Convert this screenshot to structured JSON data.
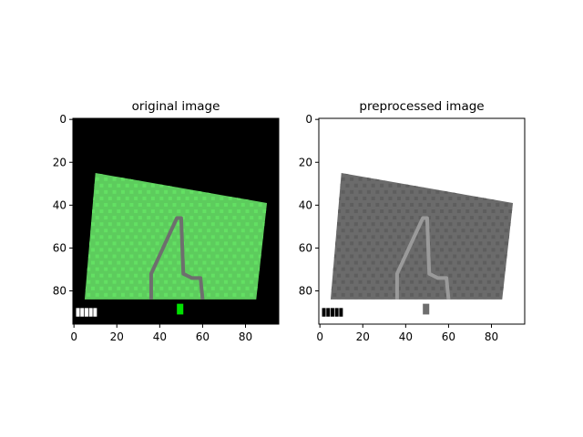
{
  "figure": {
    "background": "#ffffff"
  },
  "chart_data": [
    {
      "type": "image",
      "title": "original image",
      "xticks": [
        "0",
        "20",
        "40",
        "60",
        "80"
      ],
      "yticks": [
        "0",
        "20",
        "40",
        "60",
        "80"
      ],
      "xlim": [
        -0.5,
        95.5
      ],
      "ylim": [
        95.5,
        -0.5
      ],
      "content": {
        "background_color": "#000000",
        "field_color": "#5dcc5d",
        "field_pattern_color": "#63e063",
        "track_color": "#6e6e6e",
        "field_polygon": [
          [
            10,
            25
          ],
          [
            90,
            39
          ],
          [
            85,
            84
          ],
          [
            5,
            84
          ]
        ],
        "track_path": [
          [
            36,
            84
          ],
          [
            36,
            72
          ],
          [
            48,
            46
          ],
          [
            50,
            46
          ],
          [
            51,
            72
          ],
          [
            55,
            74
          ],
          [
            59,
            74
          ],
          [
            60,
            84
          ]
        ],
        "marker": {
          "x": 48,
          "y": 86,
          "color": "#00e000"
        },
        "hud_color": "#ffffff"
      }
    },
    {
      "type": "image",
      "title": "preprocessed image",
      "xticks": [
        "0",
        "20",
        "40",
        "60",
        "80"
      ],
      "yticks": [
        "0",
        "20",
        "40",
        "60",
        "80"
      ],
      "xlim": [
        -0.5,
        95.5
      ],
      "ylim": [
        95.5,
        -0.5
      ],
      "content": {
        "background_color": "#ffffff",
        "field_color": "#6b6b6b",
        "field_pattern_color": "#5e5e5e",
        "track_color": "#9a9a9a",
        "field_polygon": [
          [
            10,
            25
          ],
          [
            90,
            39
          ],
          [
            85,
            84
          ],
          [
            5,
            84
          ]
        ],
        "track_path": [
          [
            36,
            84
          ],
          [
            36,
            72
          ],
          [
            48,
            46
          ],
          [
            50,
            46
          ],
          [
            51,
            72
          ],
          [
            55,
            74
          ],
          [
            59,
            74
          ],
          [
            60,
            84
          ]
        ],
        "marker": {
          "x": 48,
          "y": 86,
          "color": "#6e6e6e"
        },
        "hud_color": "#000000"
      }
    }
  ]
}
